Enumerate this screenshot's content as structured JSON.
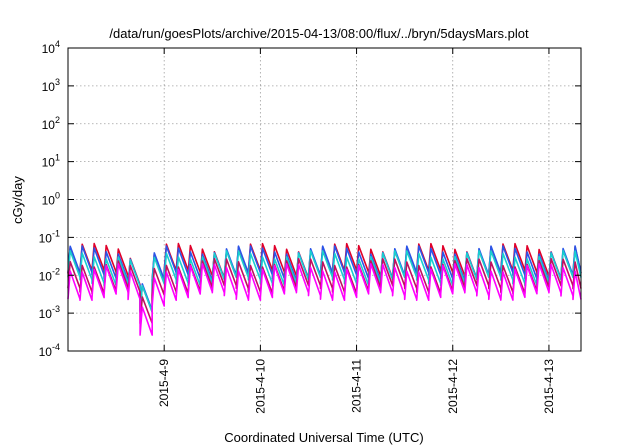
{
  "chart_data": {
    "type": "line",
    "title": "/data/run/goesPlots/archive/2015-04-13/08:00/flux/../bryn/5daysMars.plot",
    "xlabel": "Coordinated Universal Time (UTC)",
    "ylabel": "cGy/day",
    "yscale": "log",
    "ylim": [
      0.0001,
      10000
    ],
    "xlim": [
      "2015-04-08 00:00",
      "2015-04-13 08:00"
    ],
    "grid": true,
    "y_ticks": [
      {
        "base": "10",
        "exp": "-4",
        "value": 0.0001
      },
      {
        "base": "10",
        "exp": "-3",
        "value": 0.001
      },
      {
        "base": "10",
        "exp": "-2",
        "value": 0.01
      },
      {
        "base": "10",
        "exp": "-1",
        "value": 0.1
      },
      {
        "base": "10",
        "exp": "0",
        "value": 1
      },
      {
        "base": "10",
        "exp": "1",
        "value": 10
      },
      {
        "base": "10",
        "exp": "2",
        "value": 100
      },
      {
        "base": "10",
        "exp": "3",
        "value": 1000
      },
      {
        "base": "10",
        "exp": "4",
        "value": 10000
      }
    ],
    "x_ticks": [
      {
        "label": "2015-4-9",
        "day": 1
      },
      {
        "label": "2015-4-10",
        "day": 2
      },
      {
        "label": "2015-4-11",
        "day": 3
      },
      {
        "label": "2015-4-12",
        "day": 4
      },
      {
        "label": "2015-4-13",
        "day": 5
      }
    ],
    "cycle_hours": 3,
    "dip_hour": 18,
    "series": [
      {
        "color": "#e0002a",
        "peak": 0.055,
        "trough": 0.011,
        "dip_factor": 0.12
      },
      {
        "color": "#2a55e8",
        "peak": 0.048,
        "trough": 0.0095,
        "dip_factor": 0.12
      },
      {
        "color": "#18cfcf",
        "peak": 0.036,
        "trough": 0.0072,
        "dip_factor": 0.12
      },
      {
        "color": "#c01060",
        "peak": 0.022,
        "trough": 0.0044,
        "dip_factor": 0.1
      },
      {
        "color": "#ff00ff",
        "peak": 0.016,
        "trough": 0.0029,
        "dip_factor": 0.09
      }
    ]
  }
}
